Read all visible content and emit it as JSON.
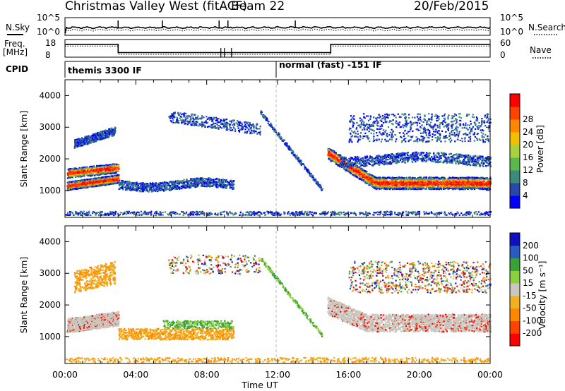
{
  "header": {
    "station": "Christmas Valley West (fitACF)",
    "beam": "Beam 22",
    "date": "20/Feb/2015"
  },
  "labels": {
    "nsky": "N.Sky",
    "nsearch": "N.Search",
    "freq": "Freq.",
    "freq_unit": "[MHz]",
    "nave": "Nave",
    "cpid": "CPID",
    "yaxis": "Slant Range [km]",
    "xaxis": "Time UT",
    "power_cb": "Power [dB]",
    "velocity_cb": "Velocity [m s⁻¹]"
  },
  "noise_panel": {
    "left_ticks": [
      "10^5",
      "10^0"
    ],
    "right_ticks": [
      "10^5",
      "10^0"
    ]
  },
  "freq_panel": {
    "left_ticks": [
      "18",
      "8"
    ],
    "right_ticks": [
      "60",
      "0"
    ],
    "freq_segments": [
      {
        "t0": 0.0,
        "t1": 3.0,
        "freq": 15.3
      },
      {
        "t0": 3.0,
        "t1": 15.0,
        "freq": 10.6
      },
      {
        "t0": 15.0,
        "t1": 24.0,
        "freq": 15.3
      }
    ]
  },
  "cpid_panel": {
    "modes": [
      {
        "label": "themis 3300 IF",
        "start": 0.0
      },
      {
        "label": "normal (fast) -151 IF",
        "start": 12.0
      }
    ]
  },
  "colors": {
    "power": [
      "#0000ff",
      "#2848a8",
      "#3a8c78",
      "#5cb84c",
      "#a8d040",
      "#f0c000",
      "#ff8800",
      "#ff4400",
      "#ff0000"
    ],
    "velocity": [
      "#1010c0",
      "#2a5cc0",
      "#3aa03a",
      "#8ad040",
      "#c8c8c0",
      "#f0b020",
      "#ff8800",
      "#ff4400",
      "#ff0000"
    ]
  },
  "chart_data": [
    {
      "type": "heatmap",
      "title": "",
      "xlabel": "Time UT",
      "ylabel": "Slant Range [km]",
      "xlim": [
        0,
        24
      ],
      "ylim": [
        150,
        4500
      ],
      "x_ticks": [
        "00:00",
        "04:00",
        "08:00",
        "12:00",
        "16:00",
        "20:00",
        "00:00"
      ],
      "y_ticks": [
        1000,
        2000,
        3000,
        4000
      ],
      "colorbar": {
        "label": "Power [dB]",
        "ticks": [
          4,
          8,
          12,
          16,
          20,
          24,
          28
        ],
        "range": [
          0,
          30
        ]
      }
    },
    {
      "type": "heatmap",
      "title": "",
      "xlabel": "Time UT",
      "ylabel": "Slant Range [km]",
      "xlim": [
        0,
        24
      ],
      "ylim": [
        150,
        4500
      ],
      "x_ticks": [
        "00:00",
        "04:00",
        "08:00",
        "12:00",
        "16:00",
        "20:00",
        "00:00"
      ],
      "y_ticks": [
        1000,
        2000,
        3000,
        4000
      ],
      "colorbar": {
        "label": "Velocity [m s⁻¹]",
        "ticks": [
          200,
          100,
          50,
          15,
          -15,
          -50,
          -100,
          -200
        ]
      }
    }
  ]
}
